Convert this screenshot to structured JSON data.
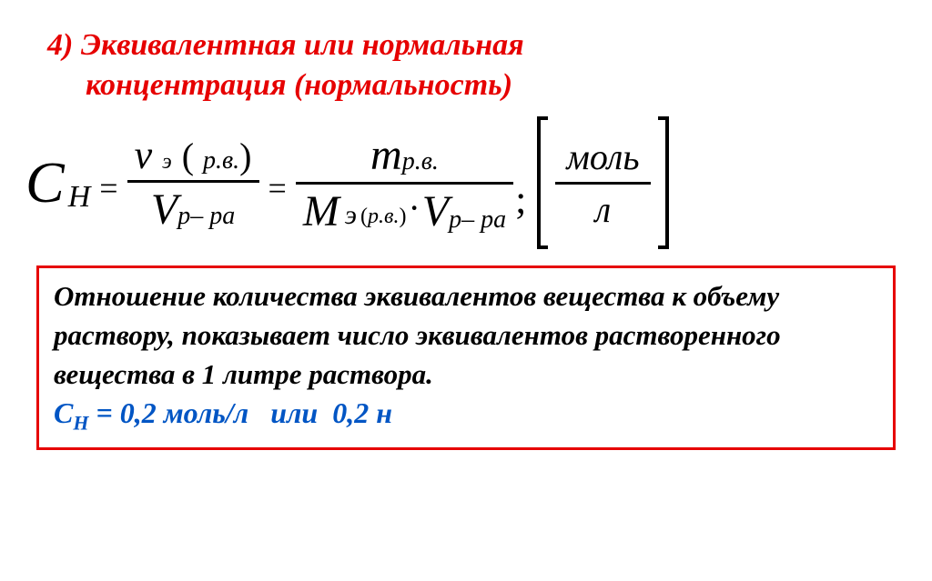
{
  "heading": {
    "numprefix": "4)",
    "line1": "Эквивалентная или нормальная",
    "line2": "концентрация (нормальность)",
    "color": "#e60000"
  },
  "formula": {
    "lhs_var": "С",
    "lhs_sub": "Н",
    "frac1": {
      "nu": "ν",
      "nu_sub": "э",
      "arg": "р.в.",
      "V": "V",
      "V_sub": "р– ра"
    },
    "frac2": {
      "m": "m",
      "m_sub": "р.в.",
      "M": "M",
      "M_sub_e": "э",
      "M_arg": "р.в.",
      "V": "V",
      "V_sub": "р– ра"
    },
    "unit": {
      "top": "моль",
      "bottom": "л"
    }
  },
  "definition": {
    "text": "Отношение количества эквивалентов вещества к объему раствору, показывает число эквивалентов растворенного вещества в 1 литре раствора.",
    "text_color": "#000000",
    "border_color": "#e60000"
  },
  "example": {
    "C": "С",
    "Csub": "Н",
    "eq": "=",
    "val1": "0,2 моль/л",
    "conj": "или",
    "val2": "0,2 н",
    "color": "#0055c4"
  }
}
